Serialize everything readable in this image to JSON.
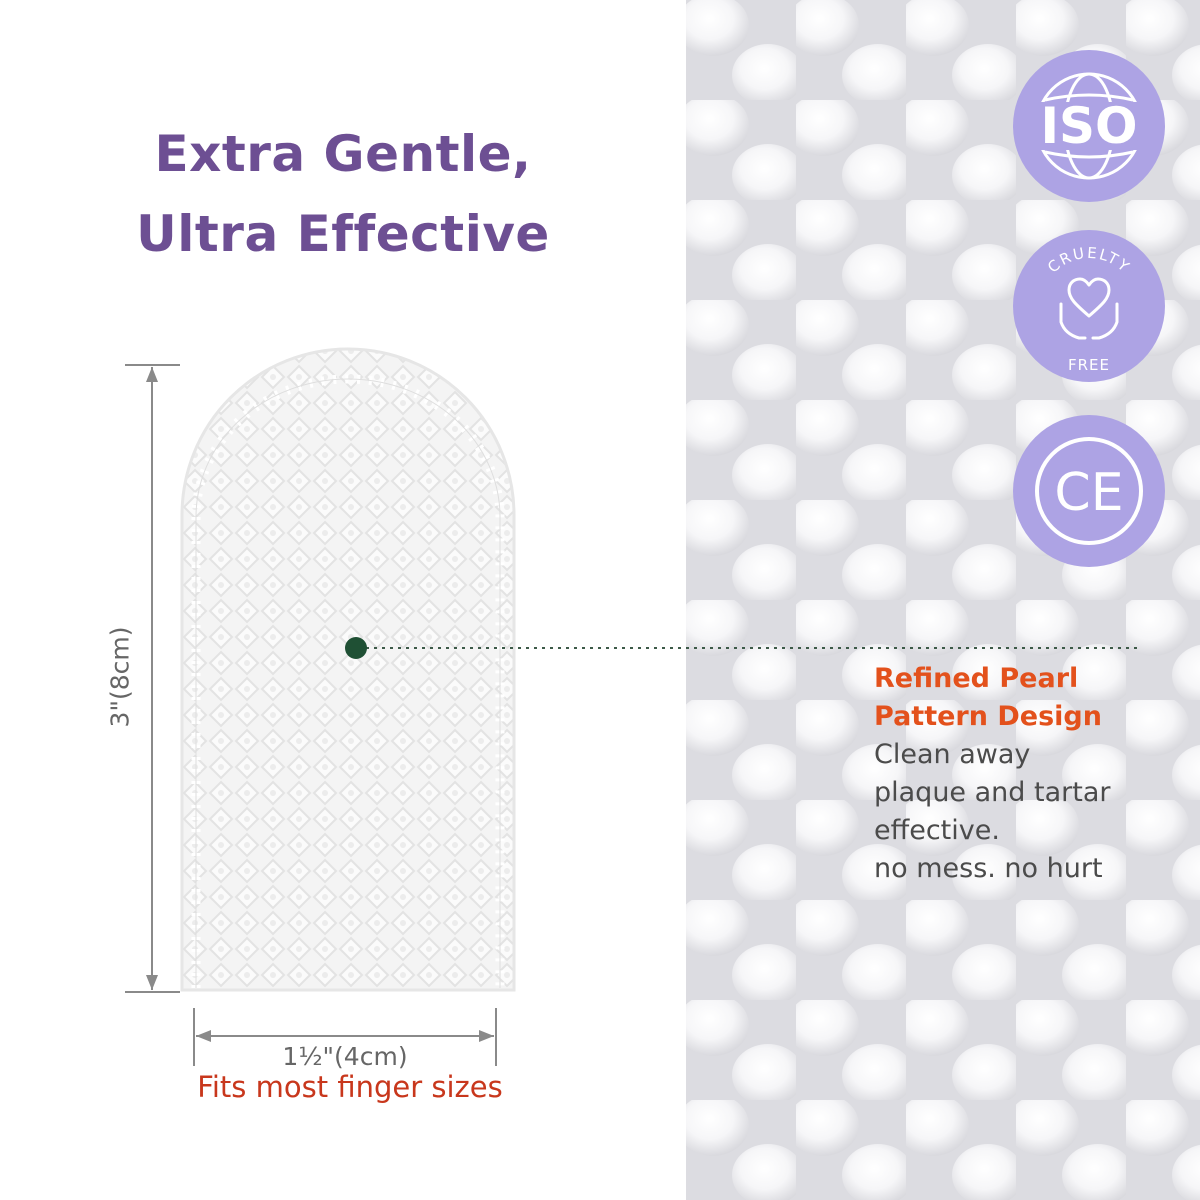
{
  "headline": {
    "line1": "Extra Gentle,",
    "line2": "Ultra Effective"
  },
  "dimensions": {
    "height_label": "3\"(8cm)",
    "width_label": "1½\"(4cm)"
  },
  "caption": "Fits most finger sizes",
  "feature": {
    "title_line1": "Refined Pearl",
    "title_line2": "Pattern Design",
    "desc": [
      "Clean away",
      "plaque and tartar",
      "effective.",
      "no mess. no hurt"
    ]
  },
  "badges": [
    {
      "label": "ISO",
      "icon": "globe-icon"
    },
    {
      "label_top": "CRUELTY",
      "label_bottom": "FREE",
      "icon": "heart-hands-icon"
    },
    {
      "label": "CE",
      "icon": "ce-mark-icon"
    }
  ],
  "colors": {
    "headline": "#6d4f93",
    "accent": "#e3511c",
    "caption": "#c8371c",
    "badge": "#ada3e4",
    "pointer_dot": "#1f5034"
  }
}
